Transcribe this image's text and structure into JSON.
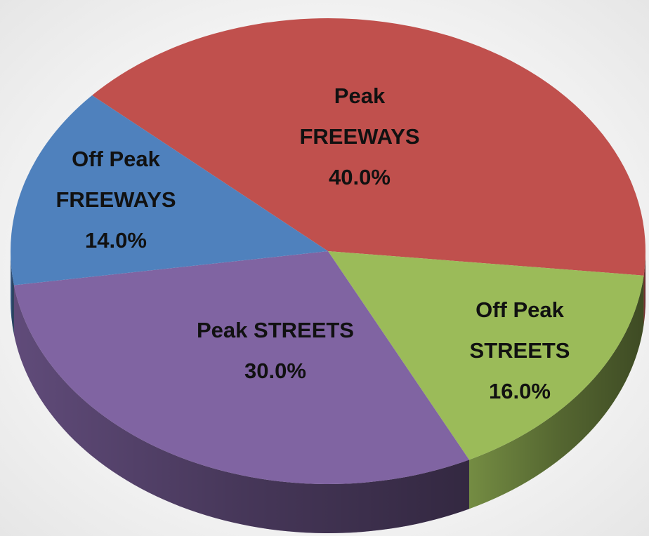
{
  "chart_data": {
    "type": "pie3d",
    "categories": [
      "Peak FREEWAYS",
      "Off Peak STREETS",
      "Peak STREETS",
      "Off Peak FREEWAYS"
    ],
    "values": [
      40,
      16,
      30,
      14
    ],
    "value_labels": [
      "40.0%",
      "16.0%",
      "30.0%",
      "14.0%"
    ],
    "colors": [
      "#c0504d",
      "#9bbb59",
      "#8064a2",
      "#4f81bd"
    ]
  }
}
